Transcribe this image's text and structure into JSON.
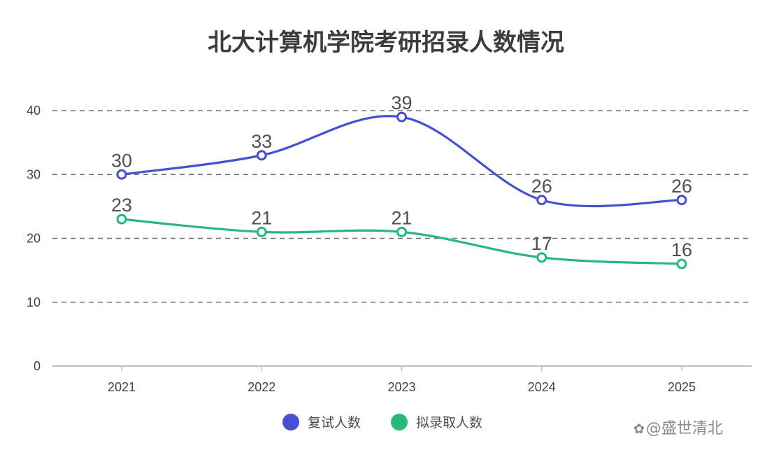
{
  "chart_data": {
    "type": "line",
    "title": "北大计算机学院考研招录人数情况",
    "xlabel": "",
    "ylabel": "",
    "categories": [
      "2021",
      "2022",
      "2023",
      "2024",
      "2025"
    ],
    "y_ticks": [
      "0",
      "10",
      "20",
      "30",
      "40"
    ],
    "ylim": [
      0,
      45
    ],
    "grid": true,
    "legend_position": "bottom-center",
    "smooth": true,
    "series": [
      {
        "name": "复试人数",
        "values": [
          30,
          33,
          39,
          26,
          26
        ],
        "color": "#4650d2"
      },
      {
        "name": "拟录取人数",
        "values": [
          23,
          21,
          21,
          17,
          16
        ],
        "color": "#28b87c"
      }
    ]
  },
  "watermark": {
    "icon": "paw-icon",
    "text": "@盛世清北"
  }
}
